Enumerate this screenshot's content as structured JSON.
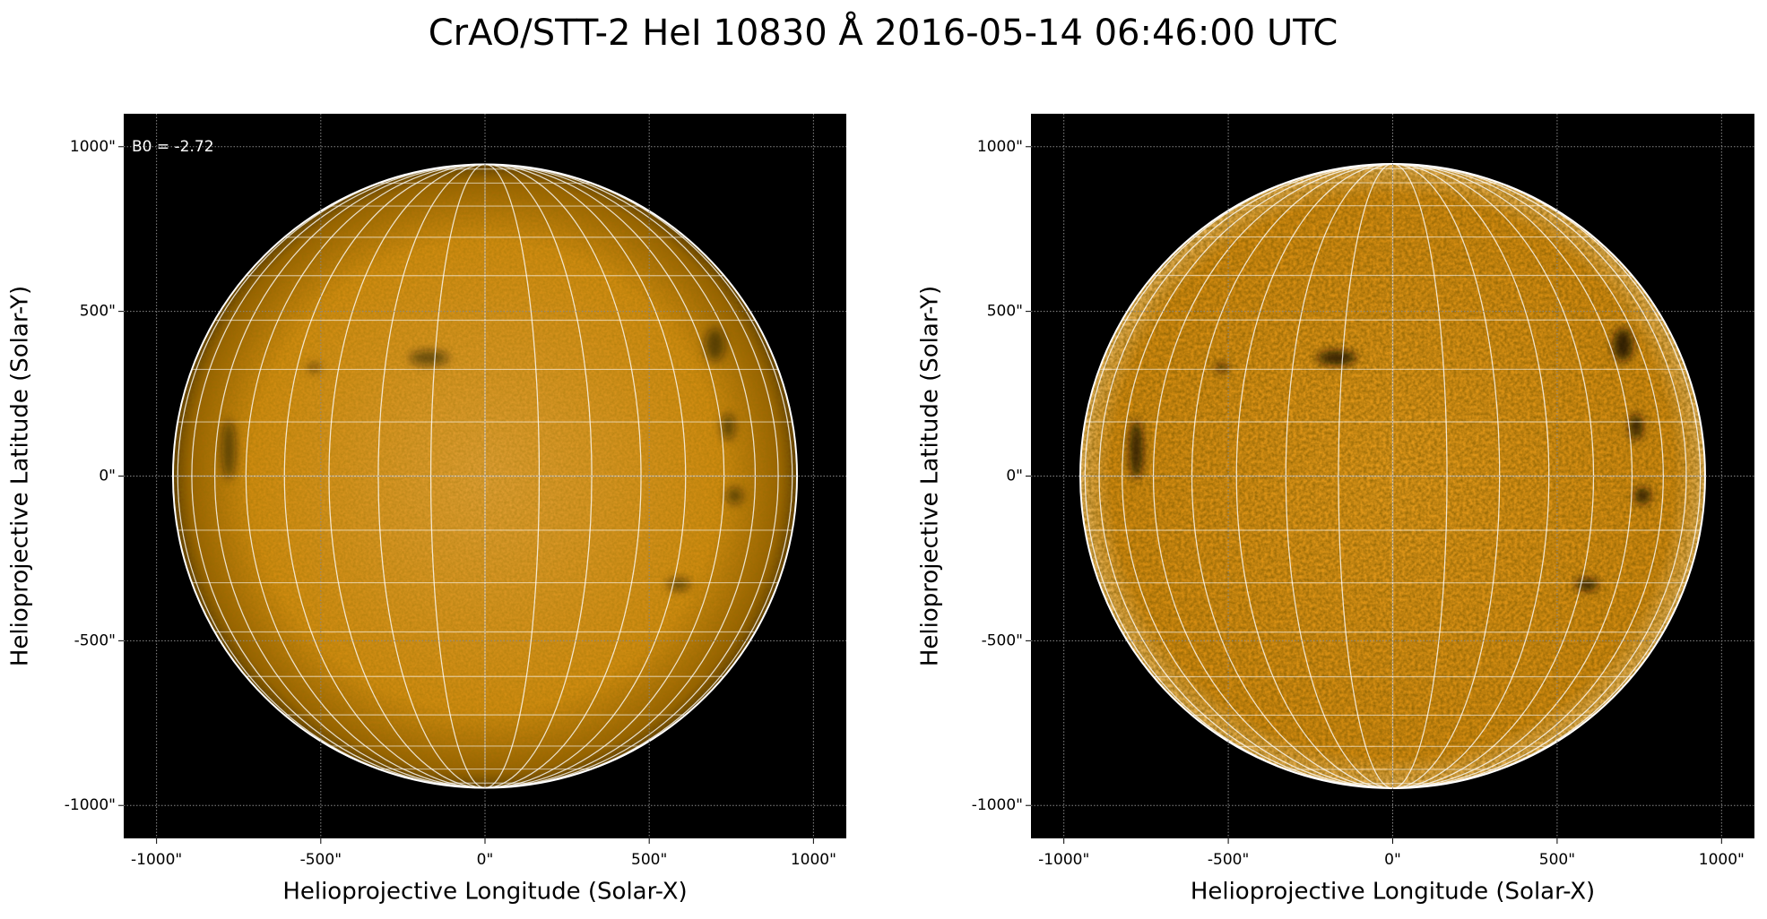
{
  "title": "CrAO/STT-2 HeI 10830 Å 2016-05-14 06:46:00 UTC",
  "chart_data": [
    {
      "type": "image",
      "xlabel": "Helioprojective Longitude (Solar-X)",
      "ylabel": "Helioprojective Latitude (Solar-Y)",
      "annotations": [
        "B0 = -2.72"
      ],
      "xlim": [
        -1100,
        1100
      ],
      "ylim": [
        -1100,
        1100
      ],
      "xticks": [
        {
          "value": -1000,
          "label": "-1000\""
        },
        {
          "value": -500,
          "label": "-500\""
        },
        {
          "value": 0,
          "label": "0\""
        },
        {
          "value": 500,
          "label": "500\""
        },
        {
          "value": 1000,
          "label": "1000\""
        }
      ],
      "yticks": [
        {
          "value": -1000,
          "label": "-1000\""
        },
        {
          "value": -500,
          "label": "-500\""
        },
        {
          "value": 0,
          "label": "0\""
        },
        {
          "value": 500,
          "label": "500\""
        },
        {
          "value": 1000,
          "label": "1000\""
        }
      ],
      "grid": true
    },
    {
      "type": "image",
      "xlabel": "Helioprojective Longitude (Solar-X)",
      "ylabel": "Helioprojective Latitude (Solar-Y)",
      "xlim": [
        -1100,
        1100
      ],
      "ylim": [
        -1100,
        1100
      ],
      "xticks": [
        {
          "value": -1000,
          "label": "-1000\""
        },
        {
          "value": -500,
          "label": "-500\""
        },
        {
          "value": 0,
          "label": "0\""
        },
        {
          "value": 500,
          "label": "500\""
        },
        {
          "value": 1000,
          "label": "1000\""
        }
      ],
      "yticks": [
        {
          "value": -1000,
          "label": "-1000\""
        },
        {
          "value": -500,
          "label": "-500\""
        },
        {
          "value": 0,
          "label": "0\""
        },
        {
          "value": 500,
          "label": "500\""
        },
        {
          "value": 1000,
          "label": "1000\""
        }
      ],
      "grid": true
    }
  ]
}
